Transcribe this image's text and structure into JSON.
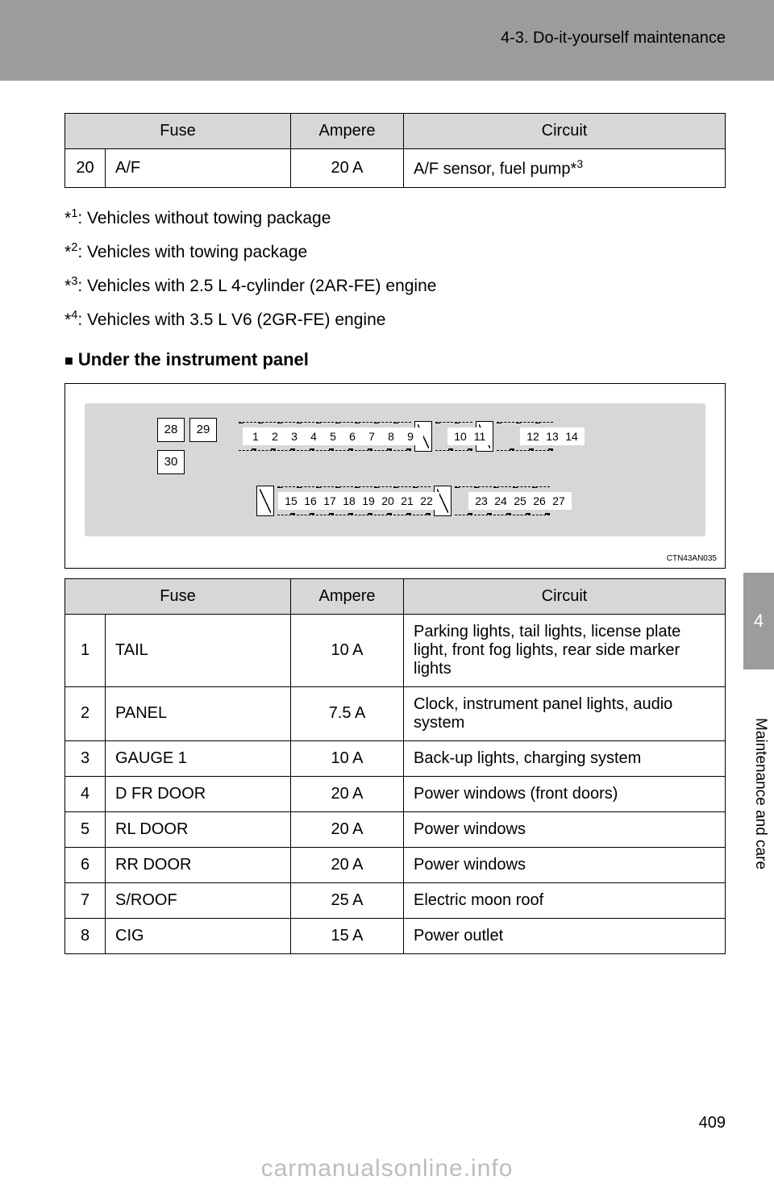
{
  "header": {
    "section": "4-3. Do-it-yourself maintenance"
  },
  "table1": {
    "headers": {
      "fuse": "Fuse",
      "ampere": "Ampere",
      "circuit": "Circuit"
    },
    "row": {
      "num": "20",
      "fuse": "A/F",
      "ampere": "20 A",
      "circuit_prefix": "A/F sensor, fuel pump*",
      "circuit_sup": "3"
    }
  },
  "notes": {
    "n1": {
      "sup": "1",
      "text": ": Vehicles without towing package"
    },
    "n2": {
      "sup": "2",
      "text": ": Vehicles with towing package"
    },
    "n3": {
      "sup": "3",
      "text": ": Vehicles with 2.5 L 4-cylinder (2AR-FE) engine"
    },
    "n4": {
      "sup": "4",
      "text": ": Vehicles with 3.5 L V6 (2GR-FE) engine"
    }
  },
  "section": {
    "title": "Under the instrument panel",
    "marker": "■"
  },
  "diagram": {
    "mini": {
      "a": "28",
      "b": "29",
      "c": "30"
    },
    "row1a": [
      "1",
      "2",
      "3",
      "4",
      "5",
      "6",
      "7",
      "8",
      "9"
    ],
    "row1b": [
      "10",
      "11"
    ],
    "row1c": [
      "12",
      "13",
      "14"
    ],
    "row2a": [
      "15",
      "16",
      "17",
      "18",
      "19",
      "20",
      "21",
      "22"
    ],
    "row2b": [
      "23",
      "24",
      "25",
      "26",
      "27"
    ],
    "code": "CTN43AN035",
    "colors": {
      "panel_bg": "#d7d7d7",
      "border": "#000000"
    }
  },
  "table2": {
    "headers": {
      "fuse": "Fuse",
      "ampere": "Ampere",
      "circuit": "Circuit"
    },
    "rows": [
      {
        "num": "1",
        "fuse": "TAIL",
        "ampere": "10 A",
        "circuit": "Parking lights, tail lights, license plate light, front fog lights, rear side marker lights"
      },
      {
        "num": "2",
        "fuse": "PANEL",
        "ampere": "7.5 A",
        "circuit": "Clock, instrument panel lights, audio system"
      },
      {
        "num": "3",
        "fuse": "GAUGE 1",
        "ampere": "10 A",
        "circuit": "Back-up lights, charging system"
      },
      {
        "num": "4",
        "fuse": "D FR DOOR",
        "ampere": "20 A",
        "circuit": "Power windows (front doors)"
      },
      {
        "num": "5",
        "fuse": "RL DOOR",
        "ampere": "20 A",
        "circuit": "Power windows"
      },
      {
        "num": "6",
        "fuse": "RR DOOR",
        "ampere": "20 A",
        "circuit": "Power windows"
      },
      {
        "num": "7",
        "fuse": "S/ROOF",
        "ampere": "25 A",
        "circuit": "Electric moon roof"
      },
      {
        "num": "8",
        "fuse": "CIG",
        "ampere": "15 A",
        "circuit": "Power outlet"
      }
    ]
  },
  "side": {
    "chapter": "4",
    "label": "Maintenance and care"
  },
  "footer": {
    "page": "409",
    "watermark": "carmanualsonline.info"
  }
}
